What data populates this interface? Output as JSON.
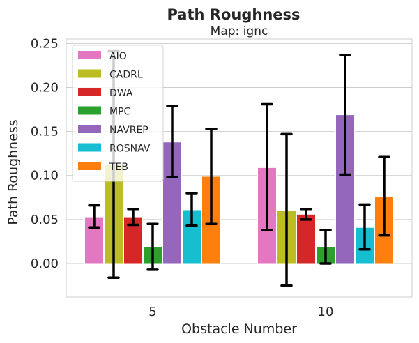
{
  "chart_data": {
    "type": "bar",
    "title": "Path Roughness",
    "subtitle": "Map: ignc",
    "xlabel": "Obstacle Number",
    "ylabel": "Path Roughness",
    "ylim": [
      -0.038,
      0.255
    ],
    "yticks": [
      0.0,
      0.05,
      0.1,
      0.15,
      0.2,
      0.25
    ],
    "ytick_labels": [
      "0.00",
      "0.05",
      "0.10",
      "0.15",
      "0.20",
      "0.25"
    ],
    "categories": [
      "5",
      "10"
    ],
    "grid": true,
    "legend_position": "top-left",
    "series": [
      {
        "name": "AIO",
        "color": "#e377c2",
        "values": [
          0.053,
          0.109
        ],
        "err_low": [
          0.041,
          0.038
        ],
        "err_high": [
          0.066,
          0.181
        ]
      },
      {
        "name": "CADRL",
        "color": "#bcbd22",
        "values": [
          0.112,
          0.06
        ],
        "err_low": [
          -0.016,
          -0.025
        ],
        "err_high": [
          0.241,
          0.147
        ]
      },
      {
        "name": "DWA",
        "color": "#d62728",
        "values": [
          0.053,
          0.056
        ],
        "err_low": [
          0.044,
          0.05
        ],
        "err_high": [
          0.062,
          0.062
        ]
      },
      {
        "name": "MPC",
        "color": "#2ca02c",
        "values": [
          0.019,
          0.019
        ],
        "err_low": [
          -0.007,
          0.0
        ],
        "err_high": [
          0.045,
          0.038
        ]
      },
      {
        "name": "NAVREP",
        "color": "#9467bd",
        "values": [
          0.138,
          0.169
        ],
        "err_low": [
          0.098,
          0.101
        ],
        "err_high": [
          0.179,
          0.237
        ]
      },
      {
        "name": "ROSNAV",
        "color": "#17becf",
        "values": [
          0.061,
          0.041
        ],
        "err_low": [
          0.043,
          0.016
        ],
        "err_high": [
          0.08,
          0.067
        ]
      },
      {
        "name": "TEB",
        "color": "#ff7f0e",
        "values": [
          0.099,
          0.076
        ],
        "err_low": [
          0.045,
          0.032
        ],
        "err_high": [
          0.153,
          0.121
        ]
      }
    ]
  }
}
